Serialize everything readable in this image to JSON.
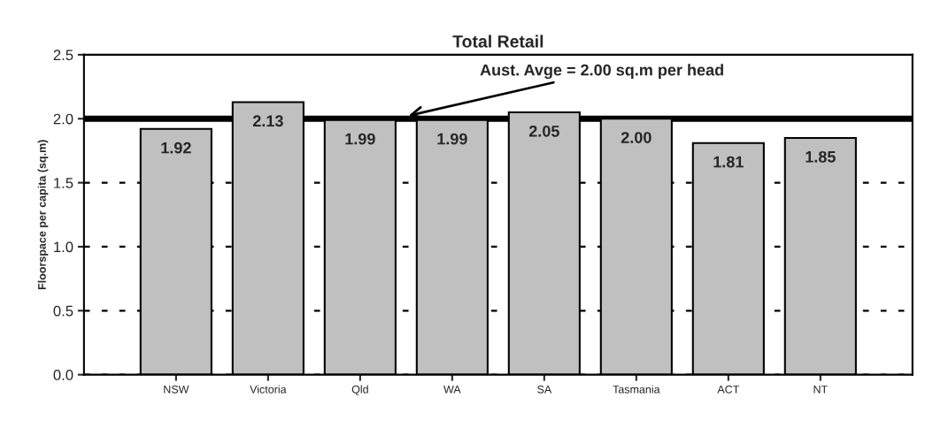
{
  "chart_data": {
    "type": "bar",
    "title": "Total Retail",
    "ylabel": "Floorspace per capita (sq.m)",
    "categories": [
      null,
      "NSW",
      "Victoria",
      "Qld",
      "WA",
      "SA",
      "Tasmania",
      "ACT",
      "NT",
      null
    ],
    "values": [
      null,
      1.92,
      2.13,
      1.99,
      1.99,
      2.05,
      2.0,
      1.81,
      1.85,
      null
    ],
    "value_labels": [
      null,
      "1.92",
      "2.13",
      "1.99",
      "1.99",
      "2.05",
      "2.00",
      "1.81",
      "1.85",
      null
    ],
    "color": "#c0c0c0",
    "ylim": [
      0,
      2.5
    ],
    "yticks": [
      {
        "value": 0,
        "label": "0.0"
      },
      {
        "value": 0.5,
        "label": "0.5"
      },
      {
        "value": 1,
        "label": "1.0"
      },
      {
        "value": 1.5,
        "label": "1.5"
      },
      {
        "value": 2,
        "label": "2.0"
      },
      {
        "value": 2.5,
        "label": "2.5"
      }
    ],
    "grid": "y",
    "line_style": "dotted",
    "legend": false,
    "ref_lines": [
      {
        "axis": "y",
        "value": 2.0,
        "label": "Aust. Avge = 2.00 sq.m per head",
        "color": "#000000"
      }
    ]
  }
}
